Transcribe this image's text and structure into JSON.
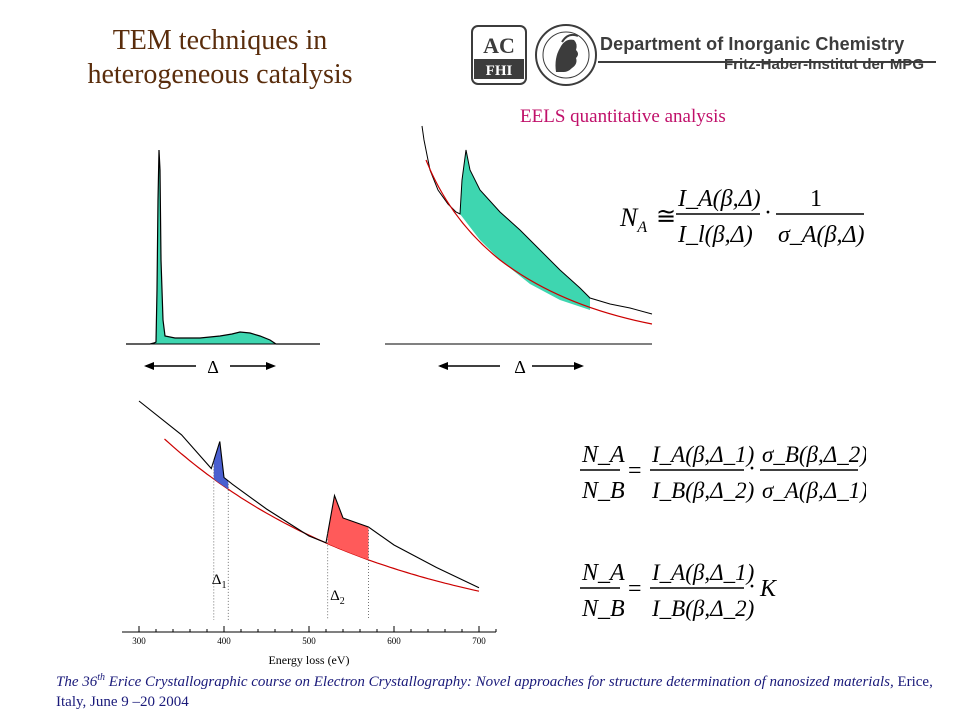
{
  "title": {
    "line1": "TEM techniques in",
    "line2": "heterogeneous catalysis"
  },
  "logo": {
    "ac_text": "AC",
    "fhi_text": "FHI",
    "department": "Department of Inorganic Chemistry",
    "institute": "Fritz-Haber-Institut der MPG",
    "seal_icon": "minerva-seal-icon"
  },
  "subtitle": "EELS quantitative analysis",
  "upper_left": {
    "delta_label": "Δ"
  },
  "upper_right": {
    "delta_label": "Δ"
  },
  "equations": {
    "eq1": {
      "lhs": "N",
      "lhs_sub": "A",
      "relation": "≅",
      "num": "I_A(β,Δ)",
      "den": "I_l(β,Δ)",
      "num2": "1",
      "den2": "σ_A(β,Δ)"
    },
    "eq2": {
      "lhs_num": "N_A",
      "lhs_den": "N_B",
      "relation": "=",
      "num": "I_A(β,Δ_1)",
      "den": "I_B(β,Δ_2)",
      "num2": "σ_B(β,Δ_2)",
      "den2": "σ_A(β,Δ_1)"
    },
    "eq3": {
      "lhs_num": "N_A",
      "lhs_den": "N_B",
      "relation": "=",
      "num": "I_A(β,Δ_1)",
      "den": "I_B(β,Δ_2)",
      "factor": "K"
    }
  },
  "chart_data": {
    "type": "line",
    "title": "",
    "xlabel": "Energy loss (eV)",
    "ylabel": "",
    "xlim": [
      280,
      720
    ],
    "x_ticks": [
      "300",
      "400",
      "500",
      "600",
      "700"
    ],
    "grid": false,
    "window_labels": [
      {
        "main": "Δ",
        "sub": "1",
        "x_start": 388,
        "x_end": 405
      },
      {
        "main": "Δ",
        "sub": "2",
        "x_start": 522,
        "x_end": 570
      }
    ],
    "series": [
      {
        "x": [
          300,
          350,
          385,
          395,
          400,
          410,
          450,
          500,
          520,
          530,
          540,
          570,
          600,
          650,
          700
        ],
        "y": [
          100,
          85,
          70,
          82,
          66,
          63,
          52,
          40,
          37,
          58,
          48,
          44,
          36,
          26,
          17
        ]
      }
    ],
    "series_colors": {
      "spectrum": "#000000",
      "background_fit": "#cc0000",
      "edge1_fill": "#4a5fd0",
      "edge2_fill": "#ff5a5a",
      "low_loss_fill": "#3ed6b0"
    }
  },
  "footer": {
    "prefix": "The 36",
    "sup": "th",
    "italic_rest": " Erice Crystallographic course on Electron Crystallography: Novel approaches for structure determination of nanosized materials,",
    "plain_rest": " Erice, Italy, June 9 –20 2004"
  }
}
